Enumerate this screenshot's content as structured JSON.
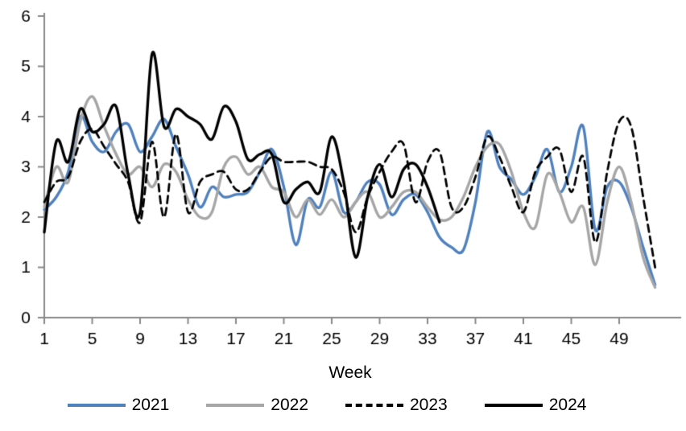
{
  "chart_data": {
    "type": "line",
    "title": "",
    "xlabel": "Week",
    "ylabel": "",
    "ylim": [
      0,
      6
    ],
    "yticks": [
      0,
      1,
      2,
      3,
      4,
      5,
      6
    ],
    "xticks": [
      1,
      5,
      9,
      13,
      17,
      21,
      25,
      29,
      33,
      37,
      41,
      45,
      49
    ],
    "x_start_week": 1,
    "x_end_week": 52,
    "grid": false,
    "smooth_lines": true,
    "legend_position": "bottom",
    "axis_color": "#898989",
    "text_color": "#000000",
    "series": [
      {
        "name": "2021",
        "color": "#4F81BD",
        "style": "solid",
        "values": [
          2.15,
          2.4,
          2.9,
          4.0,
          3.5,
          3.3,
          3.7,
          3.85,
          3.3,
          3.6,
          3.95,
          3.4,
          2.85,
          2.2,
          2.6,
          2.4,
          2.45,
          2.5,
          2.9,
          3.35,
          2.6,
          1.45,
          2.35,
          2.2,
          2.9,
          2.1,
          2.3,
          2.7,
          2.65,
          2.05,
          2.35,
          2.45,
          2.1,
          1.6,
          1.4,
          1.35,
          2.3,
          3.7,
          3.0,
          2.75,
          2.45,
          2.8,
          3.35,
          2.5,
          3.0,
          3.8,
          1.75,
          2.6,
          2.7,
          2.2,
          1.4,
          0.65
        ]
      },
      {
        "name": "2022",
        "color": "#A6A6A6",
        "style": "solid",
        "values": [
          2.2,
          3.0,
          2.7,
          3.9,
          4.4,
          3.8,
          3.25,
          2.85,
          3.0,
          2.6,
          3.05,
          2.9,
          2.35,
          2.0,
          2.1,
          3.0,
          3.2,
          2.85,
          3.0,
          2.6,
          2.5,
          2.0,
          2.35,
          2.05,
          2.35,
          2.0,
          2.3,
          2.5,
          2.0,
          2.2,
          2.5,
          2.5,
          2.2,
          1.95,
          2.0,
          2.4,
          3.0,
          3.4,
          3.45,
          2.9,
          2.1,
          1.8,
          2.85,
          2.5,
          1.9,
          2.2,
          1.05,
          2.3,
          3.0,
          2.3,
          1.2,
          0.6
        ]
      },
      {
        "name": "2023",
        "color": "#000000",
        "style": "dashed",
        "values": [
          2.3,
          2.7,
          2.8,
          3.5,
          3.75,
          3.4,
          3.05,
          2.7,
          1.9,
          3.5,
          2.0,
          3.65,
          2.1,
          2.7,
          2.85,
          2.9,
          2.55,
          2.55,
          2.9,
          3.2,
          3.1,
          3.1,
          3.1,
          3.0,
          2.95,
          2.5,
          1.7,
          2.4,
          2.9,
          3.3,
          3.45,
          2.3,
          3.1,
          3.3,
          2.2,
          2.2,
          2.8,
          3.6,
          3.2,
          2.6,
          2.1,
          2.9,
          3.2,
          3.35,
          2.5,
          3.2,
          1.5,
          2.9,
          3.9,
          3.8,
          2.4,
          1.0
        ]
      },
      {
        "name": "2024",
        "color": "#000000",
        "style": "solid",
        "values": [
          1.7,
          3.5,
          3.1,
          4.15,
          3.7,
          3.85,
          4.2,
          2.85,
          2.1,
          5.25,
          3.8,
          4.15,
          4.0,
          3.85,
          3.55,
          4.2,
          3.9,
          3.15,
          3.25,
          3.25,
          2.3,
          2.55,
          2.7,
          2.5,
          3.6,
          2.7,
          1.2,
          2.4,
          3.05,
          2.4,
          2.95,
          3.05,
          2.6,
          1.9
        ]
      }
    ]
  },
  "legend": {
    "item1": "2021",
    "item2": "2022",
    "item3": "2023",
    "item4": "2024"
  }
}
